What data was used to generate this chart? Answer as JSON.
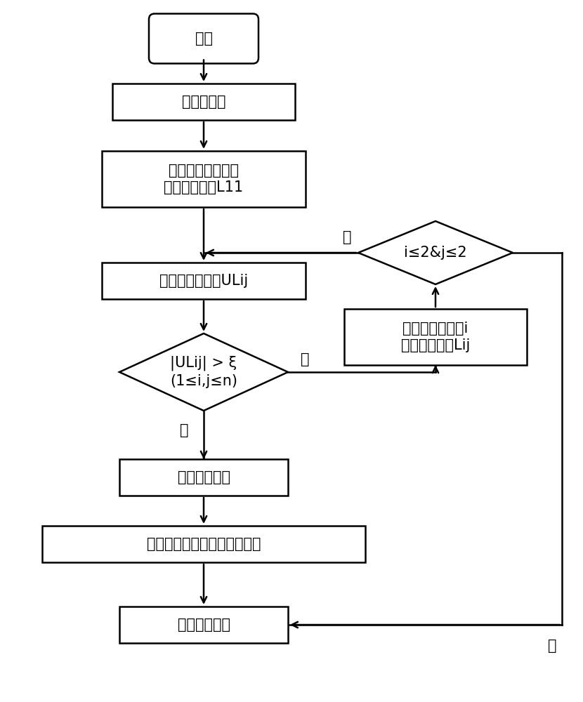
{
  "bg_color": "#ffffff",
  "line_color": "#000000",
  "text_color": "#000000",
  "font_size": 15,
  "nodes": {
    "start_text": "开始",
    "init_text": "系统初始化",
    "l11_line1": "检测系统检测第一",
    "l11_line2": "检测线圈矩阵L11",
    "measure_text": "测量感应电压值ULij",
    "cond_u_line1": "|ULij| > ξ",
    "cond_u_line2": "(1≤i,j≤n)",
    "metal_text": "存在金属异物",
    "disconnect_text": "断开电源，提示金属异物位置",
    "done_text": "异物检测完成",
    "cond_ij_text": "i≤2&j≤2",
    "lij_line1": "检测系统检测第i",
    "lij_line2": "检测线圈矩阵Lij",
    "yes1": "是",
    "no1": "否",
    "yes2": "是",
    "no2": "否"
  }
}
